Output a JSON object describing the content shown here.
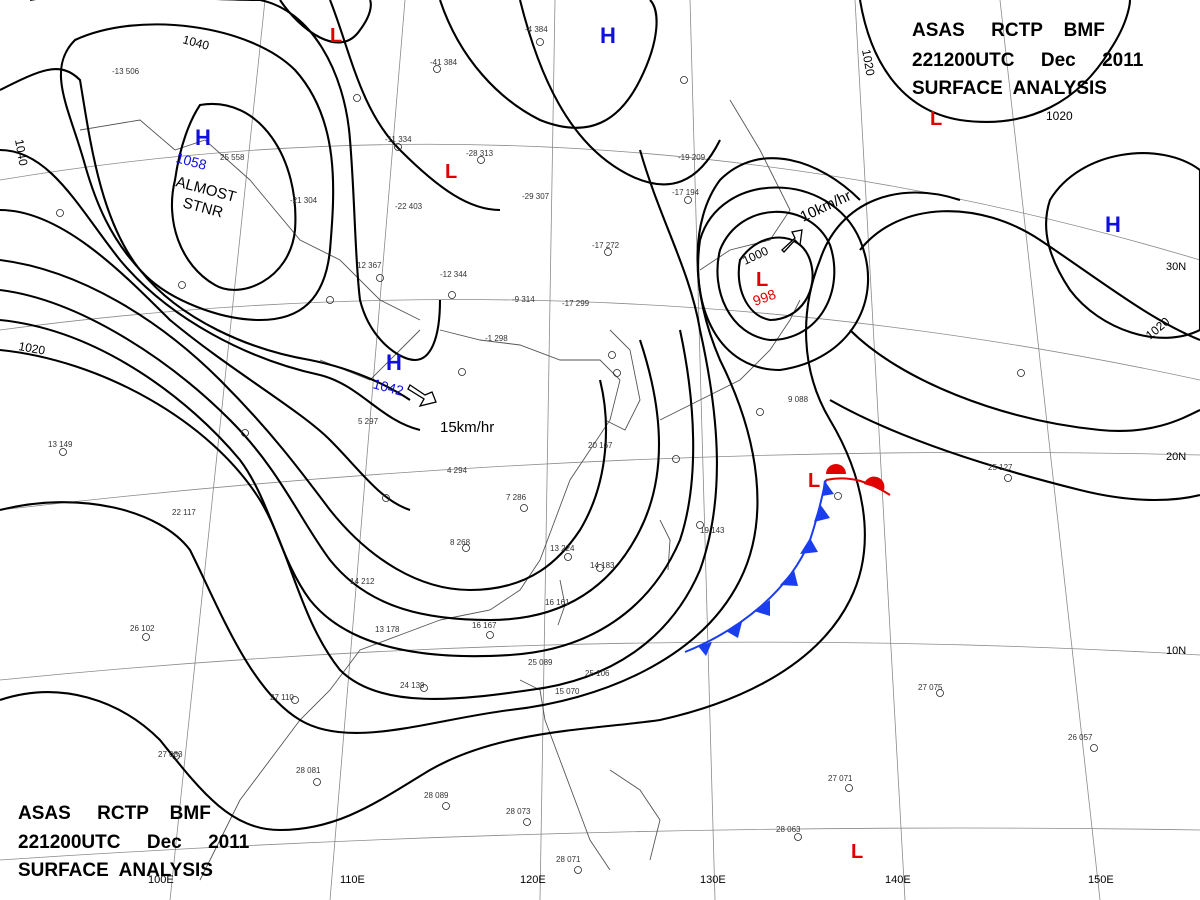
{
  "header_top": {
    "line1": "ASAS     RCTP    BMF",
    "line2": "221200UTC     Dec     2011",
    "line3": "SURFACE  ANALYSIS"
  },
  "header_bottom": {
    "line1": "ASAS     RCTP    BMF",
    "line2": "221200UTC     Dec     2011",
    "line3": "SURFACE  ANALYSIS"
  },
  "isobar_labels": [
    "1040",
    "1040",
    "1020",
    "1020",
    "1020",
    "1020",
    "1000"
  ],
  "pressure_systems": [
    {
      "type": "H",
      "value": "1058",
      "note_line1": "ALMOST",
      "note_line2": "STNR"
    },
    {
      "type": "H",
      "value": "1042",
      "motion": "15km/hr"
    },
    {
      "type": "L",
      "value": "998",
      "motion": "10km/hr"
    },
    {
      "type": "H",
      "value": ""
    },
    {
      "type": "H",
      "value": ""
    },
    {
      "type": "L",
      "value": ""
    },
    {
      "type": "L",
      "value": ""
    },
    {
      "type": "L",
      "value": ""
    },
    {
      "type": "L",
      "value": ""
    },
    {
      "type": "L",
      "value": ""
    }
  ],
  "longitude_labels": [
    "100E",
    "110E",
    "120E",
    "130E",
    "140E",
    "150E"
  ],
  "latitude_labels": [
    "30N",
    "20N",
    "10N"
  ],
  "station_samples": [
    "-13 506",
    "-4 384",
    "-41 384",
    "25 558",
    "-28 313",
    "-11 334",
    "-21 304",
    "-22 403",
    "-12 344",
    "12 367",
    "-9 314",
    "-17 299",
    "-17 272",
    "-29 307",
    "-19 209",
    "-17 194",
    "-1 298",
    "5 297",
    "4 294",
    "8 268",
    "7 286",
    "13 224",
    "14 212",
    "14 183",
    "16 167",
    "16 161",
    "13 178",
    "24 139",
    "25 106",
    "27 110",
    "27 083",
    "28 081",
    "28 089",
    "28 073",
    "28 071",
    "22 117",
    "13 149",
    "26 102",
    "25 127",
    "27 075",
    "26 057",
    "28 063",
    "27 071",
    "20 167",
    "15 070",
    "25 089",
    "9 088",
    "19 143"
  ],
  "colors": {
    "cold_front": "#1a3df0",
    "warm_front": "#e00000",
    "high": "#1010dd",
    "low": "#e00000",
    "isobar": "#000000",
    "grid": "#888888"
  }
}
